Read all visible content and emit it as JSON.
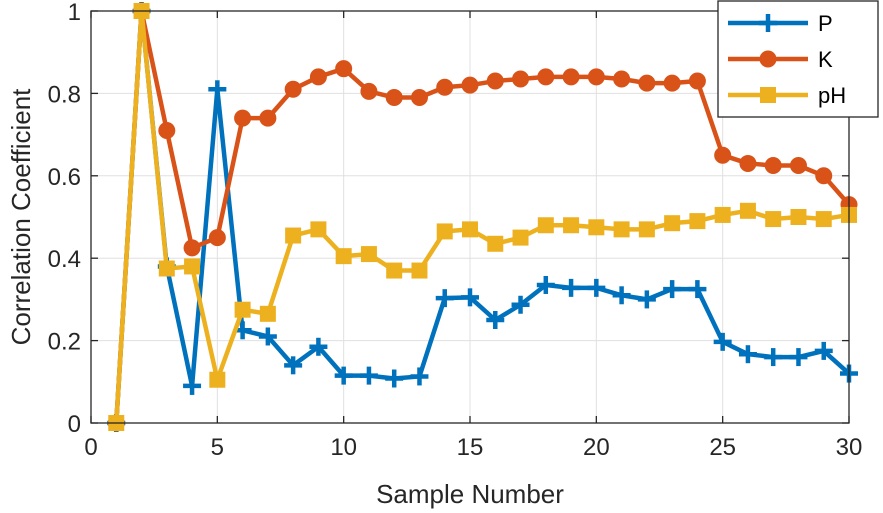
{
  "chart_data": {
    "type": "line",
    "xlabel": "Sample Number",
    "ylabel": "Correlation Coefficient",
    "xlim": [
      0,
      30
    ],
    "ylim": [
      0,
      1
    ],
    "xticks": [
      0,
      5,
      10,
      15,
      20,
      25,
      30
    ],
    "yticks": [
      0,
      0.2,
      0.4,
      0.6,
      0.8,
      1
    ],
    "ytick_labels": [
      "0",
      "0.2",
      "0.4",
      "0.6",
      "0.8",
      "1"
    ],
    "grid": true,
    "legend_position": "top-right",
    "x": [
      1,
      2,
      3,
      4,
      5,
      6,
      7,
      8,
      9,
      10,
      11,
      12,
      13,
      14,
      15,
      16,
      17,
      18,
      19,
      20,
      21,
      22,
      23,
      24,
      25,
      26,
      27,
      28,
      29,
      30
    ],
    "series": [
      {
        "name": "P",
        "color": "#0072BD",
        "marker": "plus",
        "values": [
          0,
          1,
          0.38,
          0.09,
          0.81,
          0.225,
          0.21,
          0.14,
          0.185,
          0.115,
          0.115,
          0.108,
          0.113,
          0.303,
          0.305,
          0.25,
          0.287,
          0.335,
          0.328,
          0.328,
          0.31,
          0.3,
          0.325,
          0.325,
          0.197,
          0.167,
          0.16,
          0.16,
          0.175,
          0.12
        ]
      },
      {
        "name": "K",
        "color": "#D95319",
        "marker": "circle",
        "values": [
          0,
          1,
          0.71,
          0.425,
          0.45,
          0.74,
          0.74,
          0.81,
          0.84,
          0.86,
          0.805,
          0.79,
          0.79,
          0.815,
          0.82,
          0.83,
          0.835,
          0.84,
          0.84,
          0.84,
          0.835,
          0.825,
          0.825,
          0.83,
          0.65,
          0.63,
          0.625,
          0.625,
          0.6,
          0.53
        ]
      },
      {
        "name": "pH",
        "color": "#EDB120",
        "marker": "square",
        "values": [
          0,
          1,
          0.375,
          0.38,
          0.105,
          0.275,
          0.265,
          0.455,
          0.47,
          0.405,
          0.41,
          0.37,
          0.37,
          0.465,
          0.47,
          0.435,
          0.45,
          0.48,
          0.48,
          0.475,
          0.47,
          0.47,
          0.485,
          0.49,
          0.505,
          0.515,
          0.495,
          0.5,
          0.495,
          0.505
        ]
      }
    ]
  }
}
